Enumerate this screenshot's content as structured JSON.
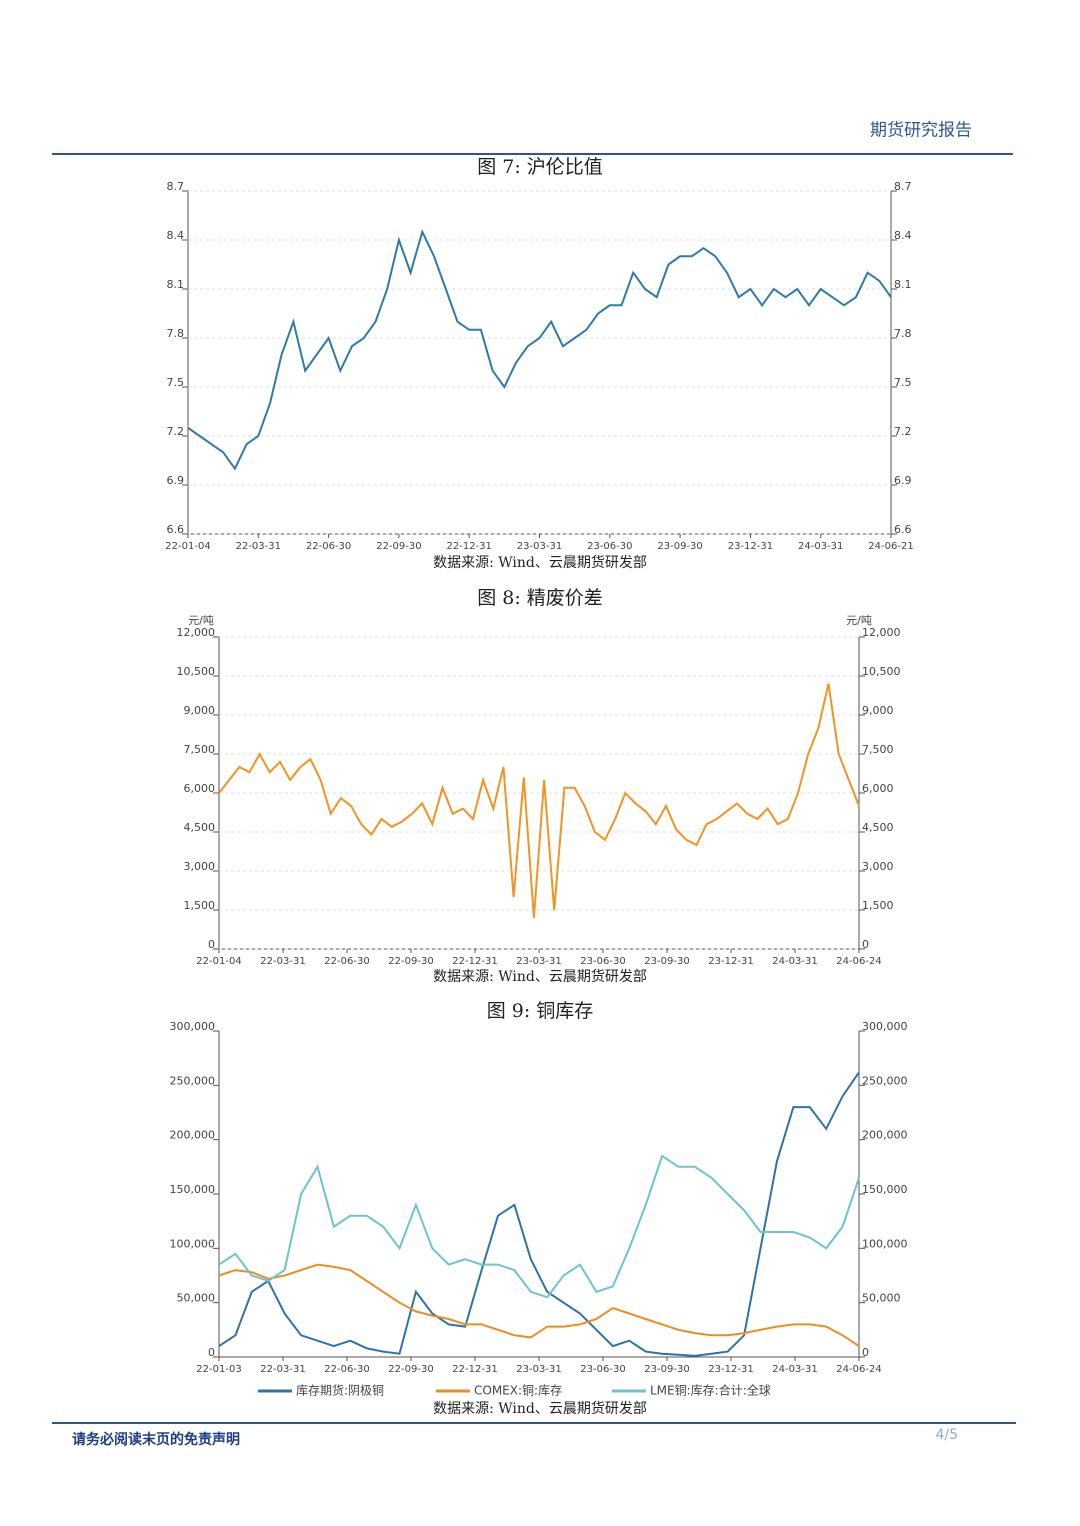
{
  "header": {
    "title": "期货研究报告"
  },
  "footer": {
    "disclaimer": "请务必阅读末页的免责声明",
    "page": "4/5"
  },
  "chart_data": [
    {
      "type": "line",
      "title": "图 7:  沪伦比值",
      "source": "数据来源: Wind、云晨期货研发部",
      "xticks": [
        "22-01-04",
        "22-03-31",
        "22-06-30",
        "22-09-30",
        "22-12-31",
        "23-03-31",
        "23-06-30",
        "23-09-30",
        "23-12-31",
        "24-03-31",
        "24-06-21"
      ],
      "ylim": [
        6.6,
        8.7
      ],
      "yticks": [
        6.6,
        6.9,
        7.2,
        7.5,
        7.8,
        8.1,
        8.4,
        8.7
      ],
      "grid": true,
      "series": [
        {
          "name": "沪伦比值",
          "color": "#2e7bab",
          "values": [
            7.25,
            7.2,
            7.15,
            7.1,
            7.0,
            7.15,
            7.2,
            7.4,
            7.7,
            7.9,
            7.6,
            7.7,
            7.8,
            7.6,
            7.75,
            7.8,
            7.9,
            8.1,
            8.4,
            8.2,
            8.45,
            8.3,
            8.1,
            7.9,
            7.85,
            7.85,
            7.6,
            7.5,
            7.65,
            7.75,
            7.8,
            7.9,
            7.75,
            7.8,
            7.85,
            7.95,
            8.0,
            8.0,
            8.2,
            8.1,
            8.05,
            8.25,
            8.3,
            8.3,
            8.35,
            8.3,
            8.2,
            8.05,
            8.1,
            8.0,
            8.1,
            8.05,
            8.1,
            8.0,
            8.1,
            8.05,
            8.0,
            8.05,
            8.2,
            8.15,
            8.05
          ]
        }
      ]
    },
    {
      "type": "line",
      "title": "图 8:  精废价差",
      "source": "数据来源: Wind、云晨期货研发部",
      "y_unit": "元/吨",
      "xticks": [
        "22-01-04",
        "22-03-31",
        "22-06-30",
        "22-09-30",
        "22-12-31",
        "23-03-31",
        "23-06-30",
        "23-09-30",
        "23-12-31",
        "24-03-31",
        "24-06-24"
      ],
      "ylim": [
        0,
        12000
      ],
      "yticks": [
        0,
        {
          "value": 1500,
          "label": "1,500"
        },
        {
          "value": 3000,
          "label": "3,000"
        },
        {
          "value": 4500,
          "label": "4,500"
        },
        {
          "value": 6000,
          "label": "6,000"
        },
        {
          "value": 7500,
          "label": "7,500"
        },
        {
          "value": 9000,
          "label": "9,000"
        },
        {
          "value": 10500,
          "label": "10,500"
        },
        {
          "value": 12000,
          "label": "12,000"
        }
      ],
      "grid": true,
      "series": [
        {
          "name": "精废价差",
          "color": "#f29423",
          "values": [
            6000,
            6500,
            7000,
            6800,
            7500,
            6800,
            7200,
            6500,
            7000,
            7300,
            6500,
            5200,
            5800,
            5500,
            4800,
            4400,
            5000,
            4700,
            4900,
            5200,
            5600,
            4800,
            6200,
            5200,
            5400,
            5000,
            6500,
            5400,
            7000,
            2000,
            6600,
            1200,
            6500,
            1500,
            6200,
            6200,
            5500,
            4500,
            4200,
            5000,
            6000,
            5600,
            5300,
            4800,
            5500,
            4600,
            4200,
            4000,
            4800,
            5000,
            5300,
            5600,
            5200,
            5000,
            5400,
            4800,
            5000,
            6000,
            7500,
            8500,
            10200,
            7500,
            6500,
            5500
          ]
        }
      ]
    },
    {
      "type": "line",
      "title": "图 9:  铜库存",
      "source": "数据来源: Wind、云晨期货研发部",
      "xticks": [
        "22-01-03",
        "22-03-31",
        "22-06-30",
        "22-09-30",
        "22-12-31",
        "23-03-31",
        "23-06-30",
        "23-09-30",
        "23-12-31",
        "24-03-31",
        "24-06-24"
      ],
      "ylim": [
        0,
        300000
      ],
      "yticks": [
        0,
        {
          "value": 50000,
          "label": "50,000"
        },
        {
          "value": 100000,
          "label": "100,000"
        },
        {
          "value": 150000,
          "label": "150,000"
        },
        {
          "value": 200000,
          "label": "200,000"
        },
        {
          "value": 250000,
          "label": "250,000"
        },
        {
          "value": 300000,
          "label": "300,000"
        }
      ],
      "grid": false,
      "series": [
        {
          "name": "库存期货:阴极铜",
          "color": "#2e73a8",
          "values": [
            10000,
            20000,
            60000,
            70000,
            40000,
            20000,
            15000,
            10000,
            15000,
            8000,
            5000,
            3000,
            60000,
            40000,
            30000,
            28000,
            80000,
            130000,
            140000,
            90000,
            60000,
            50000,
            40000,
            25000,
            10000,
            15000,
            5000,
            3000,
            2000,
            1000,
            3000,
            5000,
            20000,
            100000,
            180000,
            230000,
            230000,
            210000,
            240000,
            262000
          ]
        },
        {
          "name": "COMEX:铜:库存",
          "color": "#f08c1e",
          "values": [
            75000,
            80000,
            78000,
            72000,
            75000,
            80000,
            85000,
            83000,
            80000,
            70000,
            60000,
            50000,
            42000,
            38000,
            35000,
            30000,
            30000,
            25000,
            20000,
            18000,
            28000,
            28000,
            30000,
            35000,
            45000,
            40000,
            35000,
            30000,
            25000,
            22000,
            20000,
            20000,
            22000,
            25000,
            28000,
            30000,
            30000,
            28000,
            20000,
            10000
          ]
        },
        {
          "name": "LME铜:库存:合计:全球",
          "color": "#6cc4cf",
          "values": [
            85000,
            95000,
            75000,
            70000,
            80000,
            150000,
            175000,
            120000,
            130000,
            130000,
            120000,
            100000,
            140000,
            100000,
            85000,
            90000,
            85000,
            85000,
            80000,
            60000,
            55000,
            75000,
            85000,
            60000,
            65000,
            100000,
            140000,
            185000,
            175000,
            175000,
            165000,
            150000,
            135000,
            115000,
            115000,
            115000,
            110000,
            100000,
            120000,
            165000
          ]
        }
      ]
    }
  ]
}
